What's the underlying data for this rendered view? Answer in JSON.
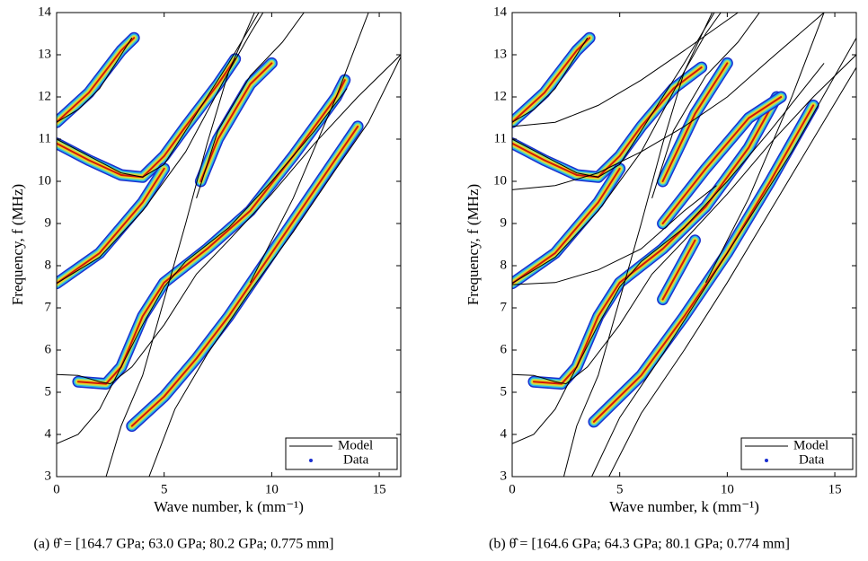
{
  "chart_data": [
    {
      "type": "line",
      "caption": "(a) θ̂ = [164.7 GPa; 63.0 GPa; 80.2 GPa; 0.775 mm]",
      "xlabel": "Wave number, k (mm⁻¹)",
      "ylabel": "Frequency, f (MHz)",
      "xlim": [
        0,
        16
      ],
      "ylim": [
        3,
        14
      ],
      "xticks": [
        0,
        5,
        10,
        15
      ],
      "yticks": [
        3,
        4,
        5,
        6,
        7,
        8,
        9,
        10,
        11,
        12,
        13,
        14
      ],
      "legend": "lower right",
      "series": [
        {
          "name": "Model",
          "color": "#000000",
          "curves": [
            {
              "x": [
                0,
                1,
                2,
                3,
                4,
                5,
                6,
                8,
                10,
                12,
                13.5
              ],
              "y": [
                3.78,
                4.0,
                4.6,
                5.6,
                6.6,
                7.5,
                8.1,
                8.9,
                10.0,
                11.2,
                12.2
              ]
            },
            {
              "x": [
                0,
                1,
                2,
                2.5,
                3.5,
                5,
                6.5,
                8,
                10,
                12,
                14,
                16
              ],
              "y": [
                5.42,
                5.4,
                5.25,
                5.2,
                5.6,
                6.6,
                7.8,
                8.6,
                9.7,
                10.9,
                12.0,
                13.0
              ]
            },
            {
              "x": [
                2.3,
                3,
                4,
                5,
                6,
                7,
                8,
                9.2
              ],
              "y": [
                3,
                4.2,
                5.4,
                7.2,
                9,
                10.9,
                12.6,
                14
              ]
            },
            {
              "x": [
                4.3,
                5.5,
                7,
                9,
                11,
                13,
                14.5,
                16
              ],
              "y": [
                3,
                4.6,
                5.9,
                7.4,
                8.8,
                10.3,
                11.4,
                12.95
              ]
            },
            {
              "x": [
                0,
                2,
                4,
                6,
                8,
                9,
                9.6
              ],
              "y": [
                7.58,
                8.2,
                9.3,
                10.7,
                12.6,
                13.5,
                14
              ]
            },
            {
              "x": [
                0,
                1.5,
                3,
                4,
                5,
                6,
                8,
                9.4
              ],
              "y": [
                11.0,
                10.6,
                10.2,
                10.1,
                10.4,
                11.2,
                12.8,
                14
              ]
            },
            {
              "x": [
                0,
                1,
                2,
                3,
                3.5
              ],
              "y": [
                11.4,
                11.7,
                12.2,
                13.0,
                13.4
              ]
            },
            {
              "x": [
                6.5,
                7.5,
                9,
                10.5,
                11.5
              ],
              "y": [
                9.6,
                11.2,
                12.5,
                13.3,
                14
              ]
            },
            {
              "x": [
                9,
                11,
                13,
                14.5
              ],
              "y": [
                7.6,
                9.6,
                12.0,
                14
              ]
            }
          ]
        },
        {
          "name": "Data",
          "color": "#1a2fd0",
          "curves": [
            {
              "x": [
                0,
                1.5,
                3,
                3.6
              ],
              "y": [
                11.4,
                12.1,
                13.1,
                13.4
              ]
            },
            {
              "x": [
                0,
                1.5,
                3,
                4,
                5,
                6,
                7.5,
                8.3
              ],
              "y": [
                10.9,
                10.5,
                10.15,
                10.1,
                10.6,
                11.3,
                12.3,
                12.9
              ]
            },
            {
              "x": [
                0,
                2,
                4,
                5
              ],
              "y": [
                7.58,
                8.3,
                9.5,
                10.3
              ]
            },
            {
              "x": [
                1,
                2.3,
                3,
                4,
                5,
                7,
                9,
                11,
                13,
                13.4
              ],
              "y": [
                5.25,
                5.2,
                5.6,
                6.8,
                7.6,
                8.4,
                9.3,
                10.6,
                12.0,
                12.4
              ]
            },
            {
              "x": [
                6.7,
                7.5,
                9,
                10
              ],
              "y": [
                10.0,
                11.0,
                12.3,
                12.8
              ]
            },
            {
              "x": [
                3.5,
                5,
                6.5,
                8,
                10,
                12,
                14
              ],
              "y": [
                4.2,
                4.9,
                5.8,
                6.8,
                8.3,
                9.8,
                11.3
              ]
            }
          ]
        }
      ]
    },
    {
      "type": "line",
      "caption": "(b) θ̂ = [164.6 GPa; 64.3 GPa; 80.1 GPa; 0.774 mm]",
      "xlabel": "Wave number, k (mm⁻¹)",
      "ylabel": "Frequency, f (MHz)",
      "xlim": [
        0,
        16
      ],
      "ylim": [
        3,
        14
      ],
      "xticks": [
        0,
        5,
        10,
        15
      ],
      "yticks": [
        3,
        4,
        5,
        6,
        7,
        8,
        9,
        10,
        11,
        12,
        13,
        14
      ],
      "legend": "lower right",
      "series": [
        {
          "name": "Model",
          "color": "#000000",
          "curves": [
            {
              "x": [
                0,
                1,
                2,
                3,
                4,
                5,
                6,
                8,
                10,
                12,
                14.5
              ],
              "y": [
                3.78,
                4.0,
                4.6,
                5.6,
                6.6,
                7.5,
                8.1,
                8.9,
                10.0,
                11.2,
                12.8
              ]
            },
            {
              "x": [
                0,
                1,
                2,
                2.5,
                3.5,
                5,
                6.5,
                8,
                10,
                12,
                14,
                16
              ],
              "y": [
                5.42,
                5.4,
                5.25,
                5.2,
                5.6,
                6.6,
                7.8,
                8.6,
                9.7,
                10.9,
                12.0,
                13.0
              ]
            },
            {
              "x": [
                2.4,
                3,
                4,
                5,
                6,
                7,
                8,
                9.3
              ],
              "y": [
                3,
                4.2,
                5.4,
                7.2,
                9,
                10.9,
                12.6,
                14
              ]
            },
            {
              "x": [
                3.7,
                5,
                7,
                9,
                11,
                13,
                16
              ],
              "y": [
                3,
                4.4,
                5.9,
                7.5,
                9.1,
                10.7,
                13.4
              ]
            },
            {
              "x": [
                4.5,
                6,
                8,
                10,
                12,
                14,
                16
              ],
              "y": [
                3,
                4.5,
                6.0,
                7.6,
                9.3,
                11.0,
                12.7
              ]
            },
            {
              "x": [
                0,
                2,
                4,
                6,
                8,
                9,
                9.7
              ],
              "y": [
                7.58,
                8.2,
                9.3,
                10.7,
                12.6,
                13.5,
                14
              ]
            },
            {
              "x": [
                0,
                1.5,
                3,
                4,
                5,
                6,
                8,
                9.4
              ],
              "y": [
                11.0,
                10.6,
                10.2,
                10.1,
                10.4,
                11.2,
                12.8,
                14
              ]
            },
            {
              "x": [
                0,
                1,
                2,
                3,
                3.5
              ],
              "y": [
                11.4,
                11.7,
                12.2,
                13.0,
                13.4
              ]
            },
            {
              "x": [
                0,
                2,
                4,
                6,
                8,
                10.5
              ],
              "y": [
                11.3,
                11.4,
                11.8,
                12.4,
                13.1,
                14
              ]
            },
            {
              "x": [
                0,
                2,
                4,
                6,
                8,
                10,
                12,
                14.5
              ],
              "y": [
                9.8,
                9.9,
                10.2,
                10.7,
                11.3,
                12.0,
                12.9,
                14
              ]
            },
            {
              "x": [
                0,
                2,
                4,
                6,
                8,
                9.5
              ],
              "y": [
                7.55,
                7.6,
                7.9,
                8.4,
                9.3,
                9.9
              ]
            },
            {
              "x": [
                6.5,
                7.5,
                9,
                10.5,
                11.5
              ],
              "y": [
                9.6,
                11.2,
                12.5,
                13.3,
                14
              ]
            },
            {
              "x": [
                9,
                11,
                13,
                14.5
              ],
              "y": [
                7.6,
                9.6,
                12.0,
                14
              ]
            }
          ]
        },
        {
          "name": "Data",
          "color": "#1a2fd0",
          "curves": [
            {
              "x": [
                0,
                1.5,
                3,
                3.6
              ],
              "y": [
                11.4,
                12.1,
                13.1,
                13.4
              ]
            },
            {
              "x": [
                0,
                1.5,
                3,
                4,
                5,
                6,
                7.5,
                8.8
              ],
              "y": [
                10.9,
                10.5,
                10.15,
                10.1,
                10.6,
                11.3,
                12.2,
                12.7
              ]
            },
            {
              "x": [
                0,
                2,
                4,
                5
              ],
              "y": [
                7.58,
                8.3,
                9.5,
                10.3
              ]
            },
            {
              "x": [
                1,
                2.3,
                3,
                4,
                5,
                7,
                9,
                11,
                12.3
              ],
              "y": [
                5.25,
                5.2,
                5.6,
                6.8,
                7.6,
                8.4,
                9.4,
                10.8,
                12.0
              ]
            },
            {
              "x": [
                7,
                8.5,
                10
              ],
              "y": [
                10.0,
                11.6,
                12.8
              ]
            },
            {
              "x": [
                7,
                9,
                11,
                12.5
              ],
              "y": [
                9.0,
                10.3,
                11.5,
                12.0
              ]
            },
            {
              "x": [
                3.8,
                6,
                8,
                10,
                12,
                14
              ],
              "y": [
                4.3,
                5.4,
                6.8,
                8.3,
                10.0,
                11.8
              ]
            },
            {
              "x": [
                7,
                8.5
              ],
              "y": [
                7.2,
                8.6
              ]
            }
          ]
        }
      ]
    }
  ]
}
